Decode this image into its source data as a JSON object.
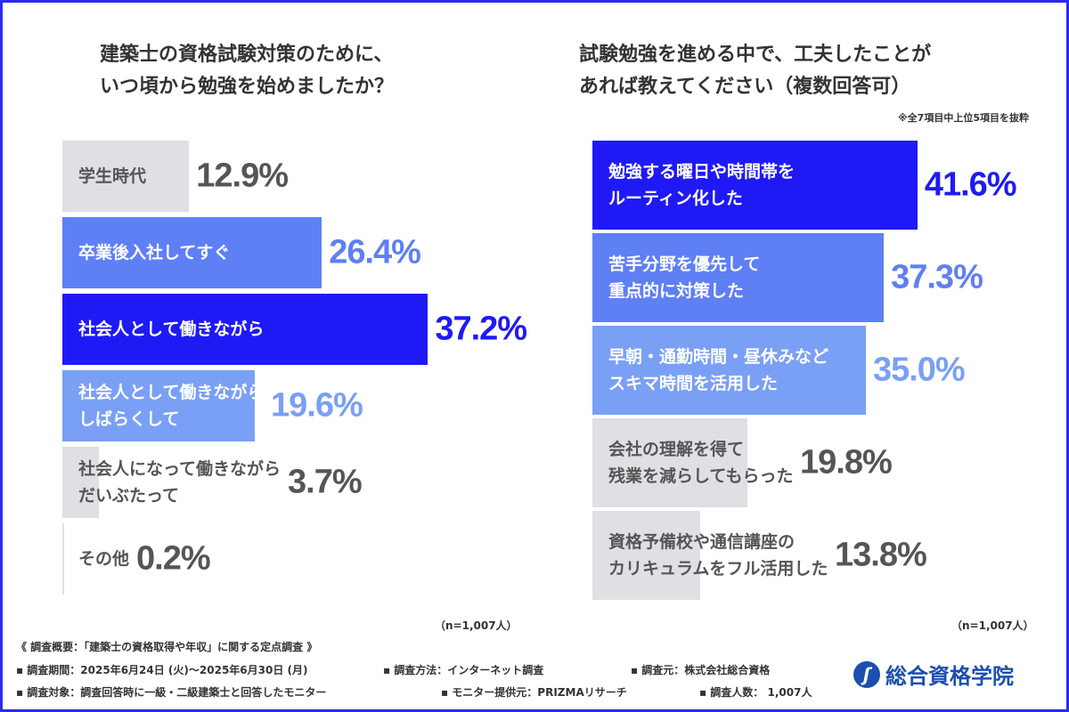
{
  "chart_data": [
    {
      "type": "bar",
      "orientation": "horizontal",
      "title": "建築士の資格試験対策のために、\nいつ頃から勉強を始めましたか？",
      "categories": [
        "学生時代",
        "卒業後入社してすぐ",
        "社会人として働きながら",
        "社会人として働きながら\nしばらくして",
        "社会人になって働きながら\nだいぶたって",
        "その他"
      ],
      "values": [
        12.9,
        26.4,
        37.2,
        19.6,
        3.7,
        0.2
      ],
      "value_labels": [
        "12.9%",
        "26.4%",
        "37.2%",
        "19.6%",
        "3.7%",
        "0.2%"
      ],
      "colors": [
        "#e0dfe3",
        "#5f7ff5",
        "#1f1af5",
        "#7aa0f5",
        "#e0dfe3",
        "#e0dfe3"
      ],
      "label_colors": [
        "#555555",
        "#ffffff",
        "#ffffff",
        "#ffffff",
        "#555555",
        "#555555"
      ],
      "value_colors": [
        "#555555",
        "#5f7ff5",
        "#1f1af5",
        "#7aa0f5",
        "#555555",
        "#555555"
      ],
      "n": "（n=1,007人）"
    },
    {
      "type": "bar",
      "orientation": "horizontal",
      "title": "試験勉強を進める中で、工夫したことが\nあれば教えてください（複数回答可）",
      "note": "※全7項目中上位5項目を抜粋",
      "categories": [
        "勉強する曜日や時間帯を\nルーティン化した",
        "苦手分野を優先して\n重点的に対策した",
        "早朝・通勤時間・昼休みなど\nスキマ時間を活用した",
        "会社の理解を得て\n残業を減らしてもらった",
        "資格予備校や通信講座の\nカリキュラムをフル活用した"
      ],
      "values": [
        41.6,
        37.3,
        35.0,
        19.8,
        13.8
      ],
      "value_labels": [
        "41.6%",
        "37.3%",
        "35.0%",
        "19.8%",
        "13.8%"
      ],
      "colors": [
        "#1f1af5",
        "#5f7ff5",
        "#7aa0f5",
        "#e0dfe3",
        "#e0dfe3"
      ],
      "label_colors": [
        "#ffffff",
        "#ffffff",
        "#ffffff",
        "#555555",
        "#555555"
      ],
      "value_colors": [
        "#1f1af5",
        "#5f7ff5",
        "#7aa0f5",
        "#555555",
        "#555555"
      ],
      "n": "（n=1,007人）"
    }
  ],
  "footer": {
    "heading": "《 調査概要：「建築士の資格取得や年収」に関する定点調査 》",
    "items": [
      "▪ 調査期間：2025年6月24日 (火)〜2025年6月30日 (月)",
      "▪ 調査方法：インターネット調査",
      "▪ 調査元：株式会社総合資格",
      "▪ 調査対象：調査回答時に一級・二級建築士と回答したモニター",
      "▪ モニター提供元：PRIZMAリサーチ",
      "▪ 調査人数： 1,007人"
    ]
  },
  "logo": {
    "text": "総合資格学院",
    "icon": "logo-swoosh-icon"
  },
  "colors": {
    "frame": "#2a2af0",
    "brand": "#1b4fb0"
  }
}
